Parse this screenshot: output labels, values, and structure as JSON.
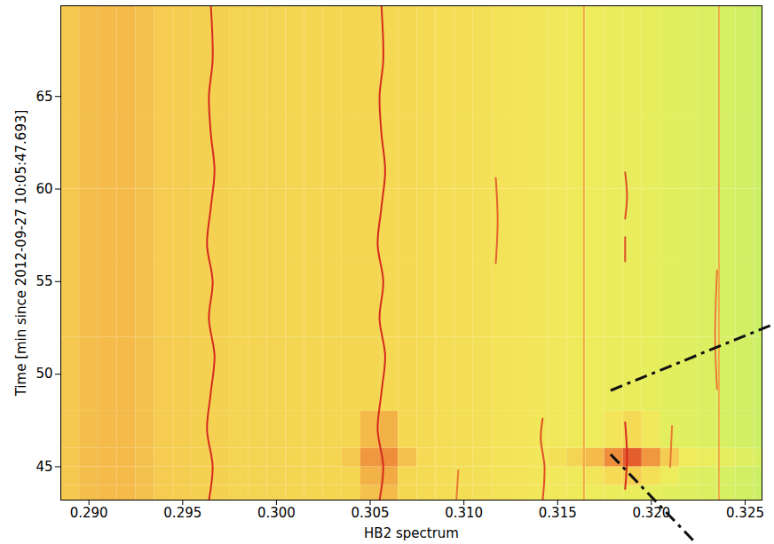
{
  "chart_data": {
    "type": "heatmap",
    "xlabel": "HB2 spectrum",
    "ylabel": "Time [min since 2012-09-27 10:05:47.693]",
    "xlim": [
      0.2885,
      0.3259
    ],
    "ylim": [
      43.2,
      69.9
    ],
    "xticks": [
      {
        "value": 0.29,
        "label": "0.290"
      },
      {
        "value": 0.295,
        "label": "0.295"
      },
      {
        "value": 0.3,
        "label": "0.300"
      },
      {
        "value": 0.305,
        "label": "0.305"
      },
      {
        "value": 0.31,
        "label": "0.310"
      },
      {
        "value": 0.315,
        "label": "0.315"
      },
      {
        "value": 0.32,
        "label": "0.320"
      },
      {
        "value": 0.325,
        "label": "0.325"
      }
    ],
    "yticks": [
      45,
      50,
      55,
      60,
      65
    ],
    "zlim": [
      0,
      1
    ],
    "x_edges": [
      0.2885,
      0.2895,
      0.2905,
      0.2915,
      0.2925,
      0.2935,
      0.2945,
      0.2955,
      0.2965,
      0.2975,
      0.2985,
      0.2995,
      0.3005,
      0.3015,
      0.3025,
      0.3035,
      0.3045,
      0.3055,
      0.3065,
      0.3075,
      0.3085,
      0.3095,
      0.3105,
      0.3115,
      0.3125,
      0.3135,
      0.3145,
      0.3155,
      0.3165,
      0.3175,
      0.3185,
      0.3195,
      0.3205,
      0.3215,
      0.3225,
      0.3235,
      0.3245,
      0.3255,
      0.3265
    ],
    "t_edges": [
      43.2,
      44,
      45,
      46,
      48,
      52,
      56,
      60,
      64,
      69.9
    ],
    "cells": [
      [
        0.62,
        0.65,
        0.66,
        0.66,
        0.64,
        0.61,
        0.6,
        0.59,
        0.59,
        0.58,
        0.58,
        0.58,
        0.57,
        0.57,
        0.57,
        0.57,
        0.64,
        0.66,
        0.56,
        0.55,
        0.54,
        0.53,
        0.52,
        0.5,
        0.49,
        0.47,
        0.45,
        0.43,
        0.41,
        0.39,
        0.37,
        0.35,
        0.33,
        0.31,
        0.29,
        0.27,
        0.25,
        0.23
      ],
      [
        0.62,
        0.65,
        0.66,
        0.66,
        0.64,
        0.61,
        0.6,
        0.59,
        0.59,
        0.58,
        0.58,
        0.58,
        0.57,
        0.57,
        0.57,
        0.57,
        0.68,
        0.7,
        0.56,
        0.55,
        0.54,
        0.53,
        0.52,
        0.5,
        0.49,
        0.47,
        0.45,
        0.43,
        0.48,
        0.55,
        0.6,
        0.52,
        0.4,
        0.31,
        0.29,
        0.27,
        0.25,
        0.23
      ],
      [
        0.62,
        0.65,
        0.66,
        0.66,
        0.64,
        0.61,
        0.6,
        0.59,
        0.59,
        0.58,
        0.58,
        0.58,
        0.57,
        0.57,
        0.57,
        0.62,
        0.74,
        0.76,
        0.64,
        0.55,
        0.54,
        0.53,
        0.52,
        0.5,
        0.49,
        0.47,
        0.52,
        0.58,
        0.66,
        0.76,
        0.86,
        0.74,
        0.6,
        0.42,
        0.38,
        0.34,
        0.31,
        0.28
      ],
      [
        0.62,
        0.65,
        0.66,
        0.66,
        0.64,
        0.61,
        0.6,
        0.59,
        0.59,
        0.58,
        0.58,
        0.58,
        0.57,
        0.57,
        0.57,
        0.57,
        0.66,
        0.68,
        0.56,
        0.55,
        0.54,
        0.53,
        0.52,
        0.5,
        0.49,
        0.47,
        0.45,
        0.43,
        0.41,
        0.48,
        0.55,
        0.45,
        0.33,
        0.31,
        0.29,
        0.27,
        0.25,
        0.23
      ],
      [
        0.62,
        0.65,
        0.66,
        0.66,
        0.64,
        0.61,
        0.6,
        0.59,
        0.59,
        0.58,
        0.58,
        0.58,
        0.57,
        0.57,
        0.57,
        0.57,
        0.57,
        0.56,
        0.56,
        0.55,
        0.54,
        0.53,
        0.52,
        0.5,
        0.49,
        0.47,
        0.45,
        0.43,
        0.41,
        0.39,
        0.37,
        0.35,
        0.33,
        0.31,
        0.29,
        0.27,
        0.25,
        0.23
      ],
      [
        0.62,
        0.65,
        0.66,
        0.66,
        0.64,
        0.61,
        0.6,
        0.59,
        0.59,
        0.58,
        0.58,
        0.58,
        0.57,
        0.57,
        0.57,
        0.57,
        0.57,
        0.56,
        0.56,
        0.55,
        0.54,
        0.53,
        0.52,
        0.5,
        0.49,
        0.47,
        0.45,
        0.43,
        0.41,
        0.39,
        0.37,
        0.35,
        0.33,
        0.31,
        0.29,
        0.27,
        0.25,
        0.23
      ],
      [
        0.62,
        0.65,
        0.66,
        0.66,
        0.64,
        0.61,
        0.6,
        0.59,
        0.59,
        0.58,
        0.58,
        0.58,
        0.57,
        0.57,
        0.57,
        0.57,
        0.57,
        0.56,
        0.56,
        0.55,
        0.54,
        0.53,
        0.52,
        0.5,
        0.49,
        0.47,
        0.45,
        0.43,
        0.41,
        0.39,
        0.37,
        0.35,
        0.33,
        0.31,
        0.29,
        0.27,
        0.25,
        0.23
      ],
      [
        0.62,
        0.65,
        0.66,
        0.66,
        0.64,
        0.61,
        0.6,
        0.59,
        0.59,
        0.58,
        0.58,
        0.58,
        0.57,
        0.57,
        0.57,
        0.57,
        0.57,
        0.56,
        0.56,
        0.55,
        0.54,
        0.53,
        0.52,
        0.5,
        0.49,
        0.47,
        0.45,
        0.43,
        0.41,
        0.39,
        0.37,
        0.35,
        0.33,
        0.31,
        0.29,
        0.27,
        0.25,
        0.23
      ],
      [
        0.62,
        0.65,
        0.66,
        0.66,
        0.64,
        0.61,
        0.6,
        0.59,
        0.59,
        0.58,
        0.58,
        0.58,
        0.57,
        0.57,
        0.57,
        0.57,
        0.57,
        0.56,
        0.56,
        0.55,
        0.54,
        0.53,
        0.52,
        0.5,
        0.49,
        0.47,
        0.45,
        0.43,
        0.41,
        0.39,
        0.37,
        0.35,
        0.33,
        0.31,
        0.29,
        0.27,
        0.25,
        0.23
      ]
    ],
    "ridges": [
      {
        "x": [
          0.3236,
          0.3236
        ],
        "t": [
          43.2,
          69.9
        ],
        "level": 0.7
      },
      {
        "x": [
          0.3164,
          0.3164
        ],
        "t": [
          43.2,
          69.9
        ],
        "level": 0.7
      },
      {
        "x": [
          0.3096,
          0.3097
        ],
        "t": [
          43.2,
          44.8
        ],
        "level": 0.8
      },
      {
        "x": [
          0.321,
          0.3211
        ],
        "t": [
          45,
          47.2
        ],
        "level": 0.8
      },
      {
        "x": [
          0.3235,
          0.3234,
          0.3235
        ],
        "t": [
          49.2,
          52,
          55.6
        ],
        "level": 0.8
      },
      {
        "x": [
          0.3117,
          0.3118,
          0.3117
        ],
        "t": [
          56,
          58.3,
          60.6
        ],
        "level": 0.85
      },
      {
        "x": [
          0.3142,
          0.3143,
          0.3141,
          0.3142
        ],
        "t": [
          43.2,
          45,
          46.5,
          47.6
        ],
        "level": 0.9
      },
      {
        "x": [
          0.3186,
          0.3186
        ],
        "t": [
          56.1,
          57.4
        ],
        "level": 0.9
      },
      {
        "x": [
          0.3186,
          0.3187,
          0.3186
        ],
        "t": [
          58.4,
          59.6,
          60.9
        ],
        "level": 0.9
      },
      {
        "x": [
          0.3186,
          0.3187,
          0.3186
        ],
        "t": [
          43.8,
          45.5,
          47.4
        ],
        "level": 1
      },
      {
        "x": [
          0.2964,
          0.2966,
          0.2963,
          0.2965,
          0.2967,
          0.2964,
          0.2966,
          0.2963,
          0.2965,
          0.2967,
          0.2965,
          0.2964,
          0.2966,
          0.2965
        ],
        "t": [
          43.2,
          45,
          47,
          49,
          51,
          53,
          55,
          57,
          59,
          61,
          63,
          65,
          67,
          69.9
        ],
        "level": 1
      },
      {
        "x": [
          0.3055,
          0.3057,
          0.3054,
          0.3056,
          0.3058,
          0.3055,
          0.3057,
          0.3054,
          0.3056,
          0.3058,
          0.3056,
          0.3055,
          0.3057,
          0.3056
        ],
        "t": [
          43.2,
          45,
          47,
          49,
          51,
          53,
          55,
          57,
          59,
          61,
          63,
          65,
          67,
          69.9
        ],
        "level": 1
      }
    ]
  }
}
